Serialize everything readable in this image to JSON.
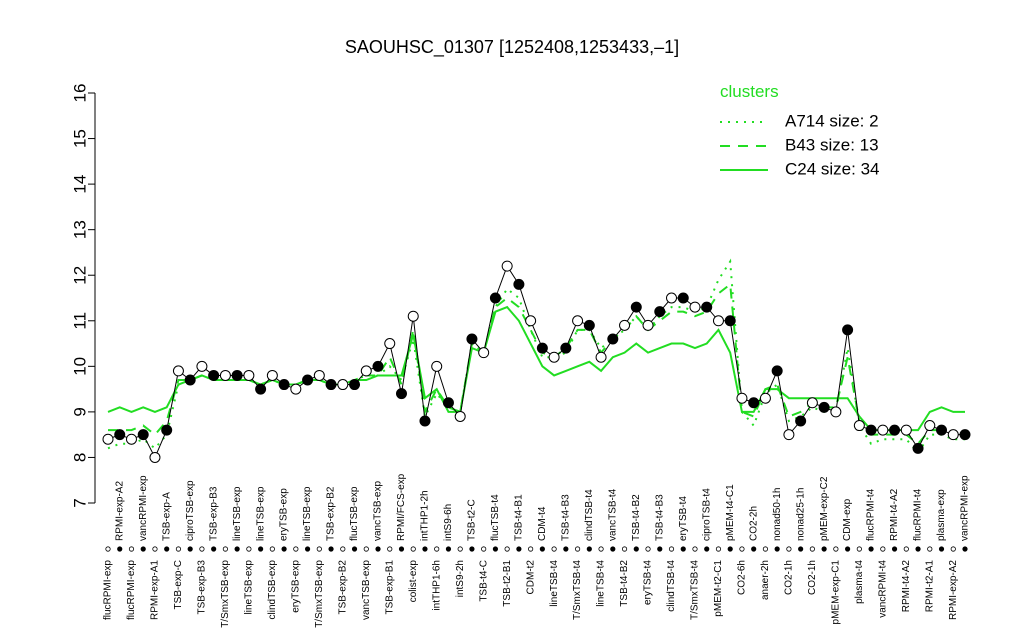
{
  "chart_data": {
    "type": "line",
    "title": "SAOUHSC_01307 [1252408,1253433,–1]",
    "legend_title": "clusters",
    "ylim": [
      7,
      16
    ],
    "yticks": [
      7,
      8,
      9,
      10,
      11,
      12,
      13,
      14,
      15,
      16
    ],
    "color": "#000000",
    "categories": [
      "flucRPMI-exp",
      "RPMI-exp-A2",
      "flucRPMI-exp",
      "vancRPMI-exp",
      "RPMI-exp-A1",
      "TSB-exp-A",
      "TSB-exp-C",
      "ciproTSB-exp",
      "TSB-exp-B3",
      "TSB-exp-B3",
      "T/SmxTSB-exp",
      "lineTSB-exp",
      "lineTSB-exp",
      "lineTSB-exp",
      "clindTSB-exp",
      "eryTSB-exp",
      "eryTSB-exp",
      "lineTSB-exp",
      "T/SmxTSB-exp",
      "TSB-exp-B2",
      "TSB-exp-B2",
      "flucTSB-exp",
      "vancTSB-exp",
      "vancTSB-exp",
      "TSB-exp-B1",
      "RPMI/FCS-exp",
      "colist-exp",
      "intTHP1-2h",
      "intTHP1-6h",
      "intS9-6h",
      "intS9-2h",
      "TSB-t2-C",
      "TSB-t4-C",
      "flucTSB-t4",
      "TSB-t2-B1",
      "TSB-t4-B1",
      "CDM-t2",
      "CDM-t4",
      "lineTSB-t4",
      "TSB-t4-B3",
      "T/SmxTSB-t4",
      "clindTSB-t4",
      "lineTSB-t4",
      "vancTSB-t4",
      "TSB-t4-B2",
      "TSB-t4-B2",
      "eryTSB-t4",
      "TSB-t4-B3",
      "clindTSB-t4",
      "eryTSB-t4",
      "T/SmxTSB-t4",
      "ciproTSB-t4",
      "pMEM-t2-C1",
      "pMEM-t4-C1",
      "CO2-6h",
      "CO2-2h",
      "anaer-2h",
      "nonad50-1h",
      "CO2-1h",
      "nonad25-1h",
      "CO2-1h",
      "pMEM-exp-C2",
      "pMEM-exp-C1",
      "CDM-exp",
      "plasma-t4",
      "flucRPMI-t4",
      "vancRPMI-t4",
      "RPMI-t4-A2",
      "RPMI-t4-A2",
      "flucRPMI-t4",
      "RPMI-t2-A1",
      "plasma-exp",
      "RPMI-exp-A2",
      "vancRPMI-exp"
    ],
    "values": [
      8.4,
      8.5,
      8.4,
      8.5,
      8.0,
      8.6,
      9.9,
      9.7,
      10.0,
      9.8,
      9.8,
      9.8,
      9.8,
      9.5,
      9.8,
      9.6,
      9.5,
      9.7,
      9.8,
      9.6,
      9.6,
      9.6,
      9.9,
      10.0,
      10.5,
      9.4,
      11.1,
      8.8,
      10.0,
      9.2,
      8.9,
      10.6,
      10.3,
      11.5,
      12.2,
      11.8,
      11.0,
      10.4,
      10.2,
      10.4,
      11.0,
      10.9,
      10.2,
      10.6,
      10.9,
      11.3,
      10.9,
      11.2,
      11.5,
      11.5,
      11.3,
      11.3,
      11.0,
      11.0,
      9.3,
      9.2,
      9.3,
      9.9,
      8.5,
      8.8,
      9.2,
      9.1,
      9.0,
      10.8,
      8.7,
      8.6,
      8.6,
      8.6,
      8.6,
      8.2,
      8.7,
      8.6,
      8.5,
      8.5
    ],
    "series": [
      {
        "name": "A714 size: 2",
        "color": "#22dd22",
        "dash": "dotted",
        "values": [
          8.2,
          8.3,
          8.3,
          8.4,
          8.2,
          8.5,
          9.6,
          9.7,
          9.8,
          9.7,
          9.7,
          9.7,
          9.7,
          9.6,
          9.7,
          9.6,
          9.6,
          9.7,
          9.7,
          9.6,
          9.6,
          9.7,
          9.8,
          9.8,
          10.0,
          9.7,
          10.6,
          8.9,
          9.4,
          9.1,
          9.0,
          10.5,
          10.3,
          11.3,
          11.7,
          11.5,
          10.8,
          10.2,
          10.2,
          10.3,
          10.8,
          10.8,
          10.4,
          10.6,
          10.8,
          11.1,
          10.8,
          11.1,
          11.3,
          11.3,
          11.2,
          11.3,
          11.9,
          12.3,
          9.0,
          8.7,
          9.4,
          9.6,
          8.8,
          8.9,
          9.1,
          9.0,
          9.0,
          10.4,
          8.7,
          8.3,
          8.4,
          8.4,
          8.4,
          8.1,
          8.5,
          8.5,
          8.4,
          8.4
        ]
      },
      {
        "name": "B43 size: 13",
        "color": "#22dd22",
        "dash": "dashed",
        "values": [
          8.6,
          8.6,
          8.6,
          8.7,
          8.5,
          8.8,
          9.7,
          9.7,
          9.8,
          9.7,
          9.7,
          9.7,
          9.7,
          9.6,
          9.7,
          9.6,
          9.6,
          9.7,
          9.7,
          9.6,
          9.6,
          9.7,
          9.8,
          9.8,
          10.2,
          9.6,
          10.8,
          9.0,
          9.5,
          9.1,
          9.0,
          10.5,
          10.3,
          11.3,
          11.5,
          11.3,
          10.8,
          10.3,
          10.2,
          10.4,
          10.8,
          10.8,
          10.3,
          10.6,
          10.8,
          11.1,
          10.8,
          11.0,
          11.2,
          11.2,
          11.1,
          11.2,
          11.6,
          11.8,
          9.0,
          8.9,
          9.5,
          9.6,
          8.9,
          9.0,
          9.2,
          9.1,
          9.1,
          10.2,
          8.8,
          8.5,
          8.5,
          8.5,
          8.5,
          8.3,
          8.6,
          8.6,
          8.5,
          8.5
        ]
      },
      {
        "name": "C24 size: 34",
        "color": "#22dd22",
        "dash": "solid",
        "values": [
          9.0,
          9.1,
          9.0,
          9.1,
          9.0,
          9.1,
          9.6,
          9.7,
          9.8,
          9.7,
          9.7,
          9.7,
          9.7,
          9.6,
          9.7,
          9.6,
          9.6,
          9.7,
          9.7,
          9.6,
          9.6,
          9.7,
          9.7,
          9.8,
          9.8,
          9.8,
          10.7,
          9.3,
          9.5,
          9.0,
          9.0,
          10.4,
          10.3,
          11.2,
          11.3,
          11.0,
          10.5,
          10.0,
          9.8,
          9.9,
          10.0,
          10.1,
          9.9,
          10.2,
          10.3,
          10.5,
          10.3,
          10.4,
          10.5,
          10.5,
          10.4,
          10.5,
          10.8,
          10.3,
          9.0,
          9.0,
          9.5,
          9.5,
          9.3,
          9.3,
          9.3,
          9.3,
          9.3,
          9.3,
          8.9,
          8.6,
          8.6,
          8.6,
          8.6,
          8.6,
          9.0,
          9.1,
          9.0,
          9.0
        ]
      }
    ]
  }
}
